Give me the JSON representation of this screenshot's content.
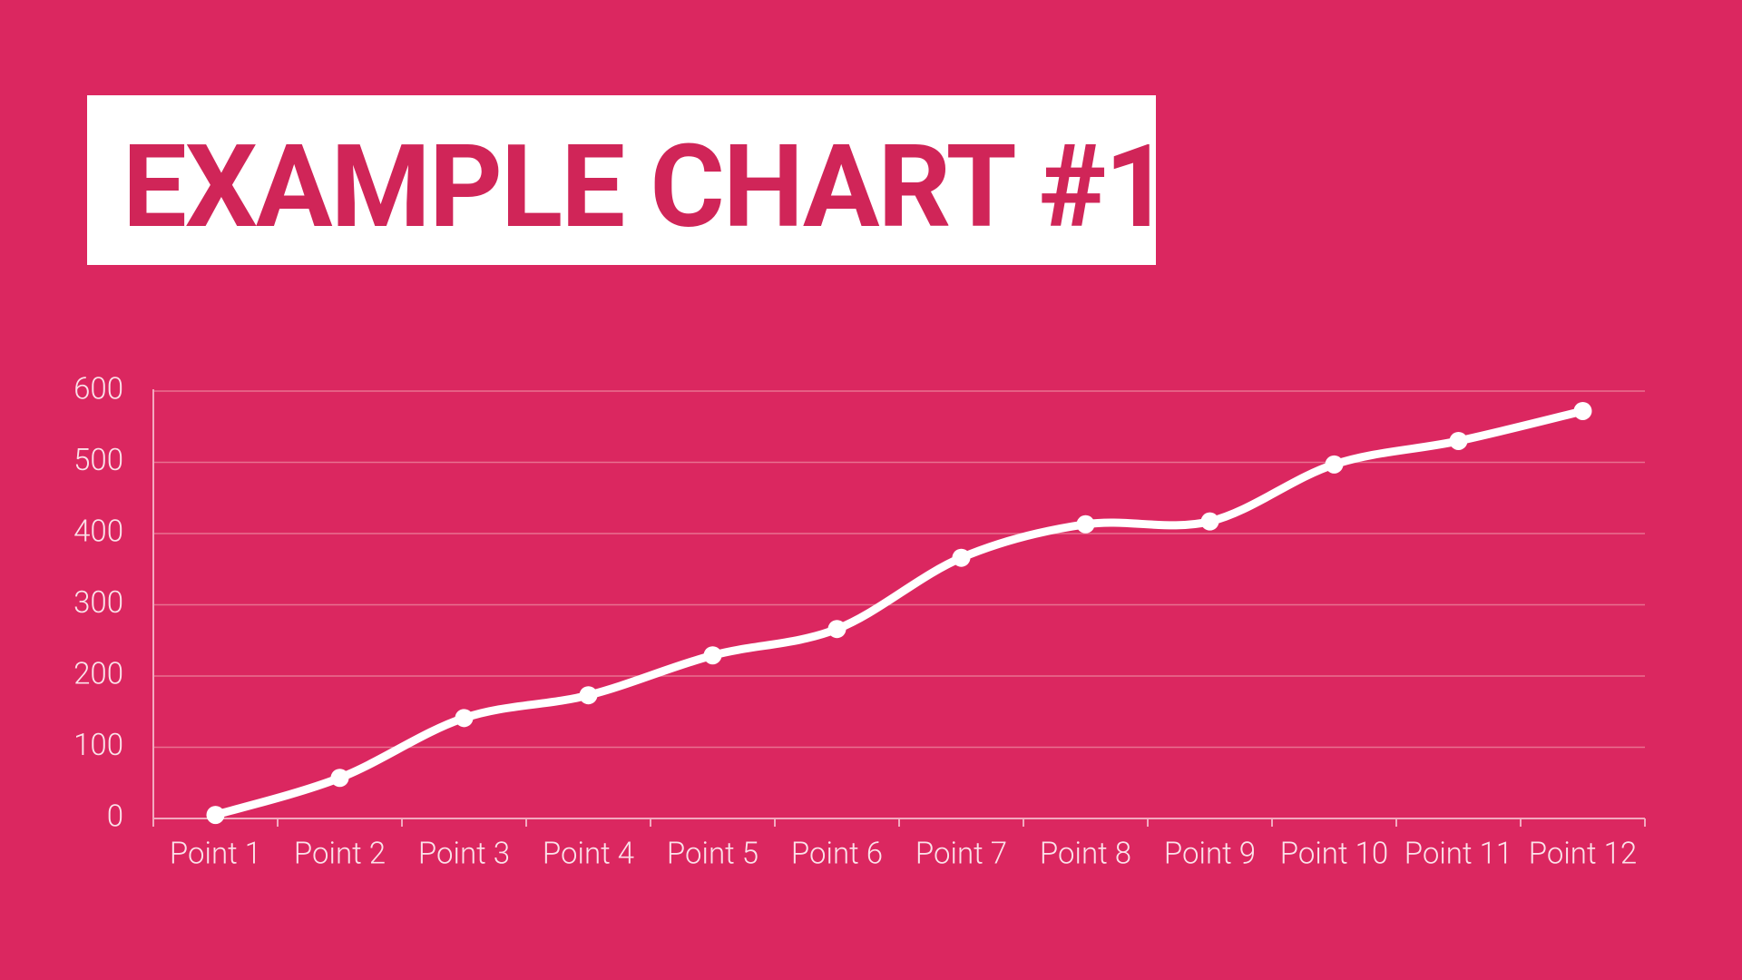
{
  "chart_data": {
    "type": "line",
    "title": "EXAMPLE CHART #1",
    "categories": [
      "Point 1",
      "Point 2",
      "Point 3",
      "Point 4",
      "Point 5",
      "Point 6",
      "Point 7",
      "Point 8",
      "Point 9",
      "Point 10",
      "Point 11",
      "Point 12"
    ],
    "values": [
      5,
      57,
      141,
      173,
      229,
      266,
      366,
      413,
      417,
      497,
      530,
      572
    ],
    "color": "#ffffff",
    "ylim": [
      0,
      600
    ],
    "yticks": [
      0,
      100,
      200,
      300,
      400,
      500,
      600
    ],
    "grid": true,
    "smooth": true
  }
}
